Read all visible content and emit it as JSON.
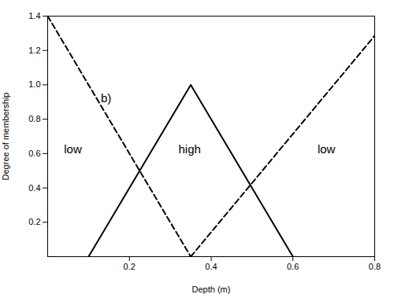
{
  "chart_data": {
    "type": "line",
    "xlabel": "Depth (m)",
    "ylabel": "Degree of membership",
    "xlim": [
      0,
      0.8
    ],
    "ylim": [
      0,
      1.4
    ],
    "xticks": [
      0.2,
      0.4,
      0.6,
      0.8
    ],
    "yticks": [
      0.2,
      0.4,
      0.6,
      0.8,
      {
        "value": 1.0,
        "label": "1.0"
      },
      1.2,
      1.4
    ],
    "series": [
      {
        "color": "black",
        "line_style": "solid",
        "x": [
          0.1,
          0.35,
          0.6
        ],
        "values": [
          0.0,
          1.0,
          0.0
        ]
      },
      {
        "color": "black",
        "line_style": "dashed",
        "x": [
          0.0,
          0.35
        ],
        "values": [
          1.4,
          0.0
        ]
      },
      {
        "color": "black",
        "line_style": "dashed",
        "x": [
          0.35,
          0.8
        ],
        "values": [
          0.0,
          1.286
        ]
      }
    ],
    "annotations": [
      {
        "text": "low",
        "x": 0.04,
        "y": 0.6
      },
      {
        "text": "high",
        "x": 0.32,
        "y": 0.6
      },
      {
        "text": "low",
        "x": 0.66,
        "y": 0.6
      },
      {
        "text": "b)",
        "x": 0.13,
        "y": 0.9
      }
    ]
  }
}
